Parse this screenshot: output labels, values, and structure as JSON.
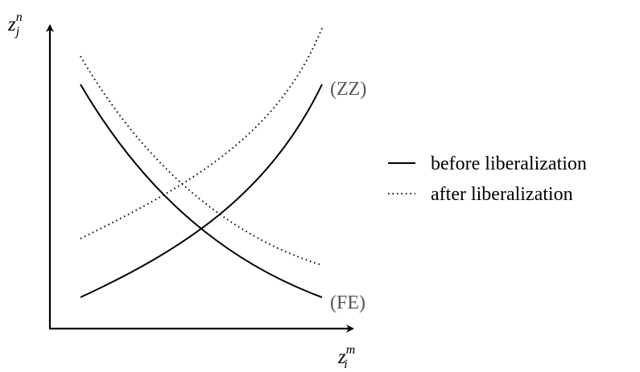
{
  "axes": {
    "y_label": {
      "base": "z",
      "sub": "j",
      "sup": "n"
    },
    "x_label": {
      "base": "z",
      "sub": "i",
      "sup": "m"
    }
  },
  "curves": {
    "zz": "(ZZ)",
    "fe": "(FE)"
  },
  "legend": [
    "before liberalization",
    "after liberalization"
  ]
}
